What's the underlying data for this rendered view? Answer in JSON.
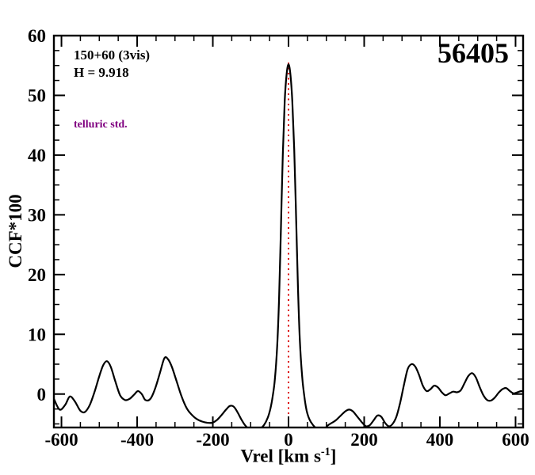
{
  "title": "56405",
  "annotations": {
    "line1": "150+60 (3vis)",
    "line2": "H = 9.918",
    "telluric": "telluric std.",
    "telluric_color": "#800080"
  },
  "chart_data": {
    "type": "line",
    "title": "56405",
    "xlabel": "Vrel [km s-1]",
    "xlabel_prefix": "Vrel [km s",
    "xlabel_sup": "-1",
    "xlabel_suffix": "]",
    "ylabel": "CCF*100",
    "xlim": [
      -620,
      620
    ],
    "ylim": [
      -5.6,
      60
    ],
    "x_major_ticks": [
      -600,
      -400,
      -200,
      0,
      200,
      400,
      600
    ],
    "x_minor_step": 50,
    "y_major_ticks": [
      0,
      10,
      20,
      30,
      40,
      50,
      60
    ],
    "y_minor_step": 2.5,
    "grid": false,
    "legend": "none",
    "line_color": "#000000",
    "frame_color": "#000000",
    "vline": {
      "x": 0,
      "color": "#dd0000",
      "style": "dotted",
      "y_top": 55.5
    },
    "series": [
      {
        "name": "CCF",
        "x": [
          -620,
          -605,
          -590,
          -578,
          -565,
          -550,
          -538,
          -525,
          -512,
          -500,
          -490,
          -480,
          -470,
          -458,
          -445,
          -432,
          -420,
          -408,
          -398,
          -388,
          -378,
          -365,
          -352,
          -340,
          -328,
          -318,
          -308,
          -295,
          -282,
          -268,
          -255,
          -242,
          -228,
          -215,
          -202,
          -190,
          -178,
          -165,
          -155,
          -145,
          -135,
          -125,
          -115,
          -105,
          -95,
          -85,
          -75,
          -65,
          -55,
          -48,
          -42,
          -36,
          -30,
          -25,
          -20,
          -15,
          -10,
          -5,
          0,
          5,
          10,
          15,
          20,
          25,
          30,
          36,
          42,
          48,
          55,
          65,
          75,
          85,
          95,
          105,
          115,
          125,
          138,
          150,
          160,
          170,
          182,
          195,
          205,
          215,
          225,
          235,
          245,
          255,
          265,
          275,
          285,
          295,
          305,
          315,
          325,
          335,
          345,
          355,
          365,
          375,
          385,
          395,
          405,
          415,
          425,
          435,
          445,
          455,
          465,
          475,
          485,
          495,
          505,
          515,
          525,
          535,
          545,
          555,
          565,
          575,
          585,
          595,
          605,
          615,
          620
        ],
        "y": [
          -0.8,
          -2.6,
          -1.8,
          -0.4,
          -1.2,
          -2.8,
          -3.0,
          -1.8,
          0.5,
          3.0,
          4.8,
          5.5,
          4.6,
          2.2,
          -0.2,
          -1.0,
          -0.8,
          -0.1,
          0.5,
          0.0,
          -1.0,
          -0.8,
          1.0,
          3.5,
          6.0,
          5.8,
          4.5,
          2.0,
          -0.5,
          -2.5,
          -3.5,
          -4.2,
          -4.6,
          -4.8,
          -4.8,
          -4.4,
          -3.6,
          -2.6,
          -2.0,
          -2.1,
          -3.0,
          -4.2,
          -5.2,
          -5.8,
          -6.0,
          -6.0,
          -5.8,
          -5.2,
          -4.0,
          -2.5,
          -0.5,
          2.5,
          8,
          16,
          28,
          40,
          49,
          53.5,
          55.2,
          53.5,
          49,
          41,
          30,
          18,
          9,
          3,
          -0.5,
          -2.8,
          -4.2,
          -5.2,
          -5.8,
          -6.0,
          -5.8,
          -5.2,
          -4.8,
          -4.4,
          -3.6,
          -2.9,
          -2.6,
          -2.9,
          -3.8,
          -4.8,
          -5.4,
          -5.2,
          -4.4,
          -3.6,
          -3.8,
          -4.8,
          -5.4,
          -5.0,
          -3.8,
          -1.5,
          1.5,
          4.2,
          5.0,
          4.6,
          3.2,
          1.4,
          0.5,
          0.8,
          1.4,
          1.1,
          0.3,
          -0.2,
          0.1,
          0.4,
          0.3,
          0.6,
          1.8,
          3.0,
          3.5,
          2.8,
          1.2,
          -0.2,
          -1.0,
          -1.1,
          -0.6,
          0.2,
          0.8,
          1.0,
          0.5,
          0.1,
          0.3,
          0.5,
          0.4
        ]
      }
    ]
  }
}
